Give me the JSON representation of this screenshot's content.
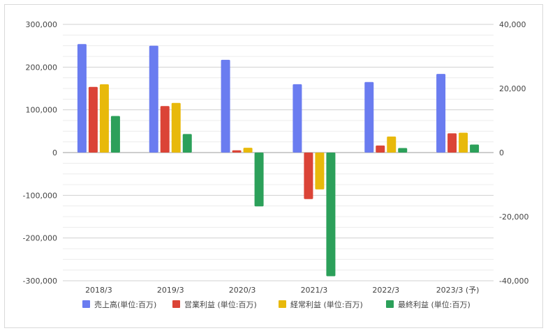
{
  "chart_data": {
    "type": "bar",
    "categories": [
      "2018/3",
      "2019/3",
      "2020/3",
      "2021/3",
      "2022/3",
      "2023/3 (予)"
    ],
    "series": [
      {
        "name": "売上高(単位:百万)",
        "color": "#6a7cf0",
        "axis": "left",
        "values": [
          254000,
          250000,
          217000,
          160000,
          165000,
          184000
        ]
      },
      {
        "name": "営業利益 (単位:百万)",
        "color": "#db4437",
        "axis": "right",
        "values": [
          20500,
          14500,
          700,
          -14500,
          2200,
          6000
        ]
      },
      {
        "name": "経常利益 (単位:百万)",
        "color": "#e8b90b",
        "axis": "right",
        "values": [
          21300,
          15500,
          1500,
          -11500,
          5000,
          6200
        ]
      },
      {
        "name": "最終利益 (単位:百万)",
        "color": "#2ca05a",
        "axis": "right",
        "values": [
          11400,
          5800,
          -16800,
          -38600,
          1400,
          2500
        ]
      }
    ],
    "left_axis": {
      "ylim": [
        -300000,
        300000
      ],
      "ticks": [
        300000,
        200000,
        100000,
        0,
        -100000,
        -200000,
        -300000
      ],
      "tick_labels": [
        "300,000",
        "200,000",
        "100,000",
        "0",
        "-100,000",
        "-200,000",
        "-300,000"
      ]
    },
    "right_axis": {
      "ylim": [
        -40000,
        40000
      ],
      "ticks": [
        40000,
        20000,
        0,
        -20000,
        -40000
      ],
      "tick_labels": [
        "40,000",
        "20,000",
        "0",
        "-20,000",
        "-40,000"
      ]
    },
    "grid": true,
    "legend_position": "bottom",
    "title": "",
    "xlabel": "",
    "ylabel": ""
  }
}
